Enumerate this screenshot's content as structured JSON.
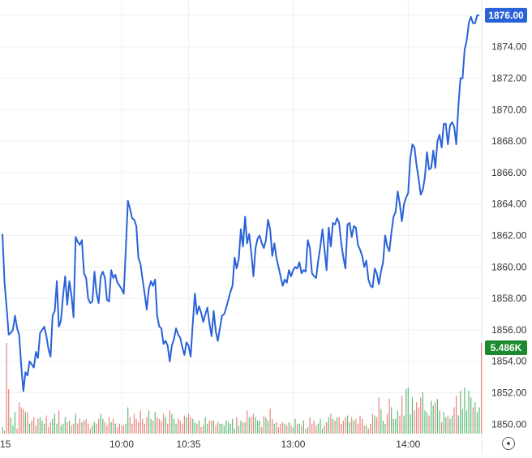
{
  "chart_data": {
    "type": "line",
    "title": "",
    "xlabel": "",
    "ylabel": "",
    "ylim": [
      1849.8,
      1877.0
    ],
    "y_ticks": [
      "1850.00",
      "1852.00",
      "1854.00",
      "1856.00",
      "1858.00",
      "1860.00",
      "1862.00",
      "1864.00",
      "1866.00",
      "1868.00",
      "1870.00",
      "1872.00",
      "1874.00",
      "1876.00"
    ],
    "x_ticks": [
      {
        "label": "15",
        "t": 0
      },
      {
        "label": "10:00",
        "t": 57
      },
      {
        "label": "10:35",
        "t": 89
      },
      {
        "label": "13:00",
        "t": 139
      },
      {
        "label": "14:00",
        "t": 194
      }
    ],
    "grid": true,
    "price_series": {
      "name": "price",
      "color": "#2962d9",
      "values": [
        1862.1,
        1859.0,
        1857.4,
        1855.7,
        1855.8,
        1856.0,
        1856.9,
        1856.1,
        1855.7,
        1853.7,
        1852.1,
        1853.3,
        1853.1,
        1854.0,
        1853.8,
        1853.6,
        1854.6,
        1854.2,
        1855.8,
        1856.0,
        1856.2,
        1855.6,
        1854.8,
        1854.3,
        1856.9,
        1857.2,
        1859.1,
        1856.2,
        1856.6,
        1858.2,
        1859.4,
        1857.6,
        1859.1,
        1858.2,
        1856.8,
        1861.9,
        1861.6,
        1861.4,
        1861.7,
        1859.6,
        1859.3,
        1858.0,
        1857.7,
        1857.8,
        1859.7,
        1858.3,
        1857.7,
        1859.4,
        1859.7,
        1859.3,
        1857.9,
        1857.8,
        1859.8,
        1859.3,
        1859.5,
        1859.0,
        1858.8,
        1858.6,
        1858.3,
        1861.2,
        1864.2,
        1863.7,
        1863.1,
        1863.0,
        1862.6,
        1860.6,
        1860.2,
        1859.2,
        1858.3,
        1857.3,
        1858.6,
        1859.1,
        1858.8,
        1859.2,
        1856.9,
        1856.2,
        1856.1,
        1855.1,
        1855.3,
        1855.0,
        1854.0,
        1855.0,
        1855.4,
        1856.1,
        1855.7,
        1855.5,
        1854.9,
        1854.4,
        1855.2,
        1855.0,
        1854.3,
        1856.4,
        1858.3,
        1857.0,
        1857.5,
        1857.1,
        1856.5,
        1857.0,
        1857.4,
        1856.4,
        1855.6,
        1857.2,
        1855.9,
        1855.3,
        1856.1,
        1856.9,
        1857.0,
        1857.4,
        1857.9,
        1858.4,
        1858.8,
        1860.6,
        1859.9,
        1860.5,
        1862.4,
        1861.3,
        1863.2,
        1861.5,
        1862.1,
        1860.9,
        1859.4,
        1861.2,
        1861.8,
        1862.0,
        1861.5,
        1861.2,
        1861.7,
        1863.0,
        1862.4,
        1860.7,
        1861.5,
        1860.6,
        1860.0,
        1859.4,
        1858.8,
        1859.2,
        1859.0,
        1859.8,
        1859.4,
        1859.8,
        1860.0,
        1859.9,
        1860.3,
        1859.6,
        1859.8,
        1859.7,
        1861.7,
        1861.2,
        1859.6,
        1859.4,
        1859.3,
        1860.4,
        1861.3,
        1862.4,
        1861.1,
        1859.8,
        1862.5,
        1861.3,
        1862.8,
        1862.7,
        1863.1,
        1862.8,
        1861.5,
        1860.6,
        1859.9,
        1862.7,
        1862.8,
        1861.9,
        1862.6,
        1862.5,
        1861.4,
        1861.1,
        1860.7,
        1860.0,
        1860.4,
        1859.2,
        1858.8,
        1858.7,
        1859.9,
        1859.6,
        1858.9,
        1859.7,
        1860.3,
        1862.0,
        1861.3,
        1861.0,
        1862.2,
        1863.2,
        1863.5,
        1864.8,
        1864.0,
        1862.9,
        1864.0,
        1864.4,
        1864.7,
        1866.9,
        1867.8,
        1867.6,
        1866.5,
        1865.6,
        1864.6,
        1864.9,
        1865.7,
        1867.3,
        1866.2,
        1866.3,
        1867.4,
        1866.3,
        1868.0,
        1868.4,
        1867.6,
        1869.1,
        1869.1,
        1867.8,
        1869.0,
        1869.2,
        1868.9,
        1867.8,
        1870.2,
        1872.0,
        1872.0,
        1873.8,
        1874.4,
        1875.5,
        1875.9,
        1875.5,
        1875.5,
        1876.0,
        1876.0
      ],
      "last_value_label": "1876.00"
    },
    "volume_series": {
      "name": "volume",
      "up_color": "#26a648",
      "down_color": "#e35a52",
      "last_value_label": "5.486K",
      "values": [
        0.4,
        0.2,
        5.5,
        2.7,
        1.0,
        0.5,
        1.3,
        0.3,
        1.9,
        1.6,
        1.5,
        1.3,
        1.3,
        0.6,
        0.8,
        1.0,
        0.5,
        0.9,
        1.0,
        0.8,
        0.6,
        1.1,
        0.4,
        0.7,
        0.9,
        1.2,
        0.6,
        1.4,
        0.5,
        0.6,
        1.0,
        0.7,
        0.8,
        0.5,
        0.6,
        1.2,
        0.6,
        0.9,
        0.7,
        0.8,
        0.9,
        0.6,
        0.3,
        0.5,
        0.7,
        0.6,
        0.9,
        1.2,
        0.9,
        0.7,
        0.5,
        1.0,
        0.7,
        0.9,
        0.6,
        0.4,
        0.6,
        0.5,
        0.5,
        0.6,
        1.6,
        1.0,
        0.6,
        1.2,
        0.9,
        0.7,
        1.4,
        0.9,
        0.6,
        1.0,
        1.4,
        0.9,
        0.8,
        1.3,
        1.0,
        0.9,
        0.8,
        1.2,
        1.0,
        0.6,
        1.4,
        1.2,
        0.9,
        0.6,
        0.9,
        0.8,
        0.6,
        1.1,
        1.0,
        1.2,
        1.0,
        0.9,
        0.7,
        0.6,
        0.8,
        0.4,
        0.5,
        1.0,
        0.6,
        0.8,
        0.8,
        0.8,
        0.5,
        0.7,
        0.6,
        0.6,
        0.5,
        0.8,
        0.7,
        0.6,
        0.9,
        0.3,
        1.0,
        0.5,
        0.8,
        0.7,
        0.7,
        1.4,
        1.0,
        1.0,
        1.2,
        1.0,
        0.8,
        0.8,
        0.4,
        1.1,
        1.0,
        0.8,
        1.5,
        0.9,
        0.6,
        0.7,
        0.4,
        0.6,
        0.7,
        0.6,
        0.5,
        0.7,
        0.5,
        0.4,
        0.9,
        0.6,
        0.6,
        0.5,
        0.8,
        0.3,
        0.4,
        1.0,
        0.6,
        0.8,
        0.5,
        0.6,
        0.9,
        0.3,
        0.5,
        0.7,
        1.0,
        1.2,
        0.9,
        0.8,
        1.0,
        1.0,
        0.6,
        0.8,
        1.0,
        1.1,
        0.7,
        1.0,
        0.8,
        0.9,
        0.6,
        1.1,
        0.9,
        0.5,
        0.5,
        0.3,
        0.6,
        1.2,
        1.1,
        1.0,
        2.2,
        1.5,
        0.8,
        0.6,
        1.2,
        2.1,
        1.6,
        0.9,
        0.9,
        1.4,
        1.1,
        2.3,
        1.1,
        2.7,
        2.8,
        1.2,
        2.2,
        1.4,
        1.9,
        1.6,
        2.2,
        2.5,
        1.4,
        1.3,
        1.1,
        2.0,
        1.7,
        1.9,
        2.1,
        1.4,
        0.7,
        1.3,
        1.0,
        1.1,
        0.9,
        1.1,
        1.6,
        2.3,
        1.1,
        2.6,
        1.5,
        2.8,
        1.4,
        2.6,
        2.2,
        1.6,
        1.9,
        1.3,
        1.6,
        5.5
      ]
    }
  }
}
